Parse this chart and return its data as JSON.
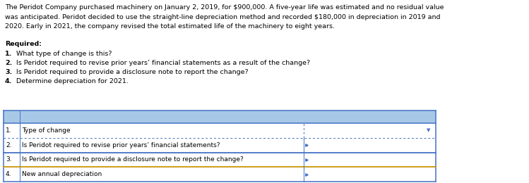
{
  "paragraph_lines": [
    "The Peridot Company purchased machinery on January 2, 2019, for $900,000. A five-year life was estimated and no residual value",
    "was anticipated. Peridot decided to use the straight-line depreciation method and recorded $180,000 in depreciation in 2019 and",
    "2020. Early in 2021, the company revised the total estimated life of the machinery to eight years."
  ],
  "required_label": "Required:",
  "questions": [
    {
      "num": "1.",
      "text": " What type of change is this?"
    },
    {
      "num": "2.",
      "text": " Is Peridot required to revise prior years’ financial statements as a result of the change?"
    },
    {
      "num": "3.",
      "text": " Is Peridot required to provide a disclosure note to report the change?"
    },
    {
      "num": "4.",
      "text": " Determine depreciation for 2021."
    }
  ],
  "table_rows": [
    {
      "num": "1.",
      "label": "Type of change"
    },
    {
      "num": "2.",
      "label": "Is Peridot required to revise prior years’ financial statements?"
    },
    {
      "num": "3.",
      "label": "Is Peridot required to provide a disclosure note to report the change?"
    },
    {
      "num": "4.",
      "label": "New annual depreciation"
    }
  ],
  "header_bg": "#a8c8e8",
  "border_blue": "#4472c4",
  "border_gold": "#c8960a",
  "text_black": "#000000",
  "fig_bg": "#ffffff",
  "font_size_para": 6.8,
  "font_size_table": 6.5
}
